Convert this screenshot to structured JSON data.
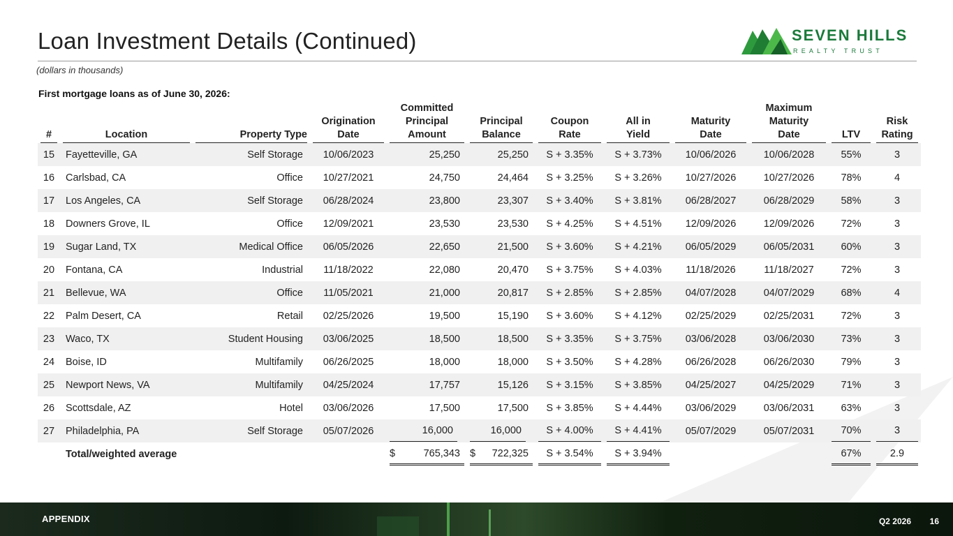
{
  "title": "Loan Investment Details (Continued)",
  "subtitle": "(dollars in thousands)",
  "logo": {
    "name": "SEVEN HILLS",
    "tagline": "REALTY TRUST",
    "color": "#1a7a3a"
  },
  "section_heading": "First mortgage loans as of June 30, 2026:",
  "columns": {
    "num": "#",
    "location": "Location",
    "property_type": "Property Type",
    "origination_date": [
      "Origination",
      "Date"
    ],
    "committed_principal": [
      "Committed",
      "Principal",
      "Amount"
    ],
    "principal_balance": [
      "Principal",
      "Balance"
    ],
    "coupon_rate": [
      "Coupon",
      "Rate"
    ],
    "all_in_yield": [
      "All in",
      "Yield"
    ],
    "maturity_date": [
      "Maturity",
      "Date"
    ],
    "max_maturity_date": [
      "Maximum",
      "Maturity",
      "Date"
    ],
    "ltv": "LTV",
    "risk_rating": [
      "Risk",
      "Rating"
    ]
  },
  "rows": [
    {
      "num": "15",
      "location": "Fayetteville, GA",
      "property_type": "Self Storage",
      "origination": "10/06/2023",
      "committed": "25,250",
      "balance": "25,250",
      "coupon": "S + 3.35%",
      "yield": "S + 3.73%",
      "maturity": "10/06/2026",
      "max_maturity": "10/06/2028",
      "ltv": "55%",
      "risk": "3"
    },
    {
      "num": "16",
      "location": "Carlsbad, CA",
      "property_type": "Office",
      "origination": "10/27/2021",
      "committed": "24,750",
      "balance": "24,464",
      "coupon": "S + 3.25%",
      "yield": "S + 3.26%",
      "maturity": "10/27/2026",
      "max_maturity": "10/27/2026",
      "ltv": "78%",
      "risk": "4"
    },
    {
      "num": "17",
      "location": "Los Angeles, CA",
      "property_type": "Self Storage",
      "origination": "06/28/2024",
      "committed": "23,800",
      "balance": "23,307",
      "coupon": "S + 3.40%",
      "yield": "S + 3.81%",
      "maturity": "06/28/2027",
      "max_maturity": "06/28/2029",
      "ltv": "58%",
      "risk": "3"
    },
    {
      "num": "18",
      "location": "Downers Grove, IL",
      "property_type": "Office",
      "origination": "12/09/2021",
      "committed": "23,530",
      "balance": "23,530",
      "coupon": "S + 4.25%",
      "yield": "S + 4.51%",
      "maturity": "12/09/2026",
      "max_maturity": "12/09/2026",
      "ltv": "72%",
      "risk": "3"
    },
    {
      "num": "19",
      "location": "Sugar Land, TX",
      "property_type": "Medical Office",
      "origination": "06/05/2026",
      "committed": "22,650",
      "balance": "21,500",
      "coupon": "S + 3.60%",
      "yield": "S + 4.21%",
      "maturity": "06/05/2029",
      "max_maturity": "06/05/2031",
      "ltv": "60%",
      "risk": "3"
    },
    {
      "num": "20",
      "location": "Fontana, CA",
      "property_type": "Industrial",
      "origination": "11/18/2022",
      "committed": "22,080",
      "balance": "20,470",
      "coupon": "S + 3.75%",
      "yield": "S + 4.03%",
      "maturity": "11/18/2026",
      "max_maturity": "11/18/2027",
      "ltv": "72%",
      "risk": "3"
    },
    {
      "num": "21",
      "location": "Bellevue, WA",
      "property_type": "Office",
      "origination": "11/05/2021",
      "committed": "21,000",
      "balance": "20,817",
      "coupon": "S + 2.85%",
      "yield": "S + 2.85%",
      "maturity": "04/07/2028",
      "max_maturity": "04/07/2029",
      "ltv": "68%",
      "risk": "4"
    },
    {
      "num": "22",
      "location": "Palm Desert, CA",
      "property_type": "Retail",
      "origination": "02/25/2026",
      "committed": "19,500",
      "balance": "15,190",
      "coupon": "S + 3.60%",
      "yield": "S + 4.12%",
      "maturity": "02/25/2029",
      "max_maturity": "02/25/2031",
      "ltv": "72%",
      "risk": "3"
    },
    {
      "num": "23",
      "location": "Waco, TX",
      "property_type": "Student Housing",
      "origination": "03/06/2025",
      "committed": "18,500",
      "balance": "18,500",
      "coupon": "S + 3.35%",
      "yield": "S + 3.75%",
      "maturity": "03/06/2028",
      "max_maturity": "03/06/2030",
      "ltv": "73%",
      "risk": "3"
    },
    {
      "num": "24",
      "location": "Boise, ID",
      "property_type": "Multifamily",
      "origination": "06/26/2025",
      "committed": "18,000",
      "balance": "18,000",
      "coupon": "S + 3.50%",
      "yield": "S + 4.28%",
      "maturity": "06/26/2028",
      "max_maturity": "06/26/2030",
      "ltv": "79%",
      "risk": "3"
    },
    {
      "num": "25",
      "location": "Newport News, VA",
      "property_type": "Multifamily",
      "origination": "04/25/2024",
      "committed": "17,757",
      "balance": "15,126",
      "coupon": "S + 3.15%",
      "yield": "S + 3.85%",
      "maturity": "04/25/2027",
      "max_maturity": "04/25/2029",
      "ltv": "71%",
      "risk": "3"
    },
    {
      "num": "26",
      "location": "Scottsdale, AZ",
      "property_type": "Hotel",
      "origination": "03/06/2026",
      "committed": "17,500",
      "balance": "17,500",
      "coupon": "S + 3.85%",
      "yield": "S + 4.44%",
      "maturity": "03/06/2029",
      "max_maturity": "03/06/2031",
      "ltv": "63%",
      "risk": "3"
    },
    {
      "num": "27",
      "location": "Philadelphia, PA",
      "property_type": "Self Storage",
      "origination": "05/07/2026",
      "committed": "16,000",
      "balance": "16,000",
      "coupon": "S + 4.00%",
      "yield": "S + 4.41%",
      "maturity": "05/07/2029",
      "max_maturity": "05/07/2031",
      "ltv": "70%",
      "risk": "3"
    }
  ],
  "total": {
    "label": "Total/weighted average",
    "currency": "$",
    "committed": "765,343",
    "balance": "722,325",
    "coupon": "S + 3.54%",
    "yield": "S + 3.94%",
    "ltv": "67%",
    "risk": "2.9"
  },
  "footer": {
    "section": "APPENDIX",
    "quarter": "Q2 2026",
    "page": "16"
  }
}
